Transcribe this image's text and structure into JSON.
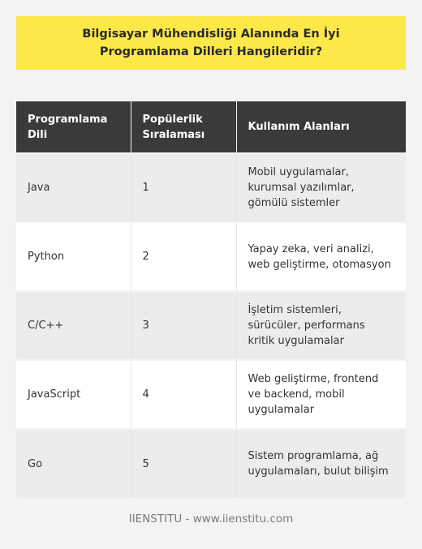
{
  "title": "Bilgisayar Mühendisliği Alanında En İyi Programlama Dilleri Hangileridir?",
  "table": {
    "headers": [
      "Programlama Dili",
      "Popülerlik Sıralaması",
      "Kullanım Alanları"
    ],
    "rows": [
      [
        "Java",
        "1",
        "Mobil uygulamalar, kurumsal yazılımlar, gömülü sistemler"
      ],
      [
        "Python",
        "2",
        "Yapay zeka, veri analizi, web geliştirme, otomasyon"
      ],
      [
        "C/C++",
        "3",
        "İşletim sistemleri, sürücüler, performans kritik uygulamalar"
      ],
      [
        "JavaScript",
        "4",
        "Web geliştirme, frontend ve backend, mobil uygulamalar"
      ],
      [
        "Go",
        "5",
        "Sistem programlama, ağ uygulamaları, bulut bilişim"
      ]
    ]
  },
  "footer": "IIENSTITU - www.iienstitu.com",
  "colors": {
    "banner": "#fde84a",
    "header_bg": "#3a3a3a",
    "background": "#f3f3f3"
  }
}
